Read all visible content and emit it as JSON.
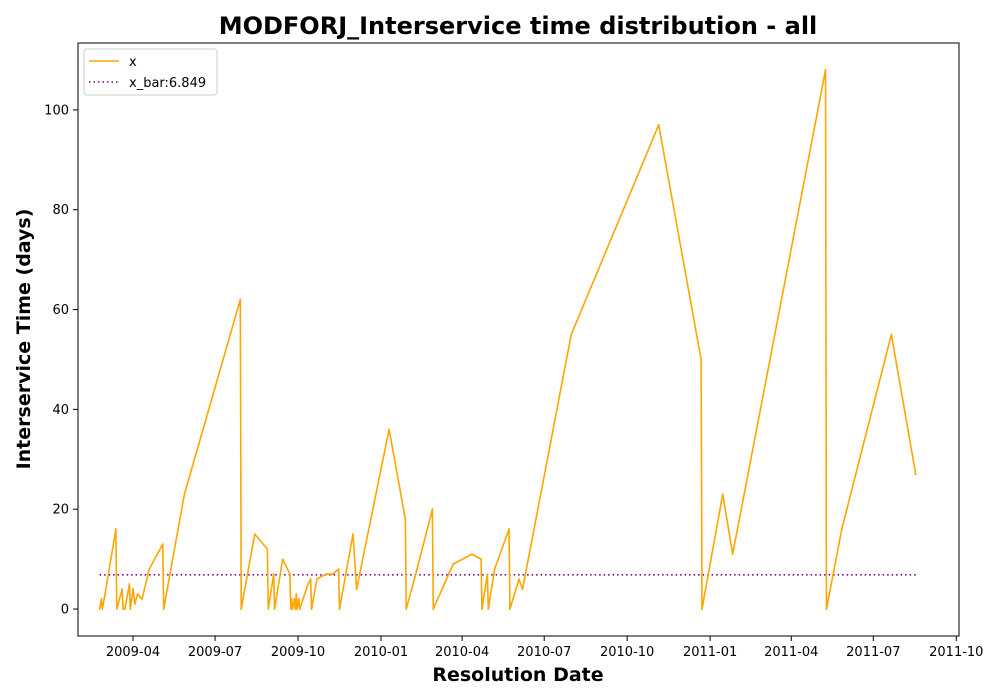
{
  "chart_data": {
    "type": "line",
    "title": "MODFORJ_Interservice time distribution - all",
    "xlabel": "Resolution Date",
    "ylabel": "Interservice Time (days)",
    "x_ticks": [
      "2009-04",
      "2009-07",
      "2009-10",
      "2010-01",
      "2010-04",
      "2010-07",
      "2010-10",
      "2011-01",
      "2011-04",
      "2011-07",
      "2011-10"
    ],
    "y_ticks": [
      0,
      20,
      40,
      60,
      80,
      100
    ],
    "xlim": [
      "2009-01-30",
      "2011-10-04"
    ],
    "ylim": [
      -5.4,
      113.4
    ],
    "legend_position": "upper-left",
    "series": [
      {
        "name": "x",
        "color": "#FFA500",
        "style": "solid",
        "points": [
          [
            "2009-02-23",
            0
          ],
          [
            "2009-02-25",
            2
          ],
          [
            "2009-02-26",
            0
          ],
          [
            "2009-03-01",
            3
          ],
          [
            "2009-03-13",
            16
          ],
          [
            "2009-03-14",
            0
          ],
          [
            "2009-03-20",
            4
          ],
          [
            "2009-03-21",
            0
          ],
          [
            "2009-03-23",
            0
          ],
          [
            "2009-03-28",
            5
          ],
          [
            "2009-03-29",
            0
          ],
          [
            "2009-04-01",
            4
          ],
          [
            "2009-04-03",
            1
          ],
          [
            "2009-04-06",
            3
          ],
          [
            "2009-04-11",
            2
          ],
          [
            "2009-04-19",
            8
          ],
          [
            "2009-05-04",
            13
          ],
          [
            "2009-05-05",
            0
          ],
          [
            "2009-05-28",
            23
          ],
          [
            "2009-07-29",
            62
          ],
          [
            "2009-07-30",
            0
          ],
          [
            "2009-08-14",
            15
          ],
          [
            "2009-08-28",
            12
          ],
          [
            "2009-08-29",
            0
          ],
          [
            "2009-09-04",
            7
          ],
          [
            "2009-09-05",
            0
          ],
          [
            "2009-09-14",
            10
          ],
          [
            "2009-09-22",
            7
          ],
          [
            "2009-09-23",
            0
          ],
          [
            "2009-09-24",
            2
          ],
          [
            "2009-09-25",
            0
          ],
          [
            "2009-09-27",
            2
          ],
          [
            "2009-09-28",
            0
          ],
          [
            "2009-09-29",
            3
          ],
          [
            "2009-09-30",
            0
          ],
          [
            "2009-10-02",
            2
          ],
          [
            "2009-10-03",
            0
          ],
          [
            "2009-10-12",
            5
          ],
          [
            "2009-10-15",
            6
          ],
          [
            "2009-10-16",
            0
          ],
          [
            "2009-10-22",
            6
          ],
          [
            "2009-11-01",
            7
          ],
          [
            "2009-11-08",
            7
          ],
          [
            "2009-11-15",
            8
          ],
          [
            "2009-11-16",
            0
          ],
          [
            "2009-12-01",
            15
          ],
          [
            "2009-12-05",
            4
          ],
          [
            "2010-01-10",
            36
          ],
          [
            "2010-01-28",
            18
          ],
          [
            "2010-01-29",
            0
          ],
          [
            "2010-02-10",
            8
          ],
          [
            "2010-02-27",
            20
          ],
          [
            "2010-02-28",
            0
          ],
          [
            "2010-03-22",
            9
          ],
          [
            "2010-04-12",
            11
          ],
          [
            "2010-04-22",
            10
          ],
          [
            "2010-04-23",
            0
          ],
          [
            "2010-04-29",
            7
          ],
          [
            "2010-04-30",
            0
          ],
          [
            "2010-05-07",
            8
          ],
          [
            "2010-05-23",
            16
          ],
          [
            "2010-05-24",
            0
          ],
          [
            "2010-06-03",
            6
          ],
          [
            "2010-06-07",
            4
          ],
          [
            "2010-07-31",
            55
          ],
          [
            "2010-11-05",
            97
          ],
          [
            "2010-12-22",
            50
          ],
          [
            "2010-12-23",
            0
          ],
          [
            "2011-01-15",
            23
          ],
          [
            "2011-01-26",
            11
          ],
          [
            "2011-05-09",
            108
          ],
          [
            "2011-05-10",
            0
          ],
          [
            "2011-05-27",
            16
          ],
          [
            "2011-07-21",
            55
          ],
          [
            "2011-08-17",
            27
          ]
        ]
      },
      {
        "name": "x_bar:6.849",
        "color": "#800080",
        "style": "dotted",
        "value": 6.849,
        "x_range": [
          "2009-02-23",
          "2011-08-17"
        ]
      }
    ]
  }
}
